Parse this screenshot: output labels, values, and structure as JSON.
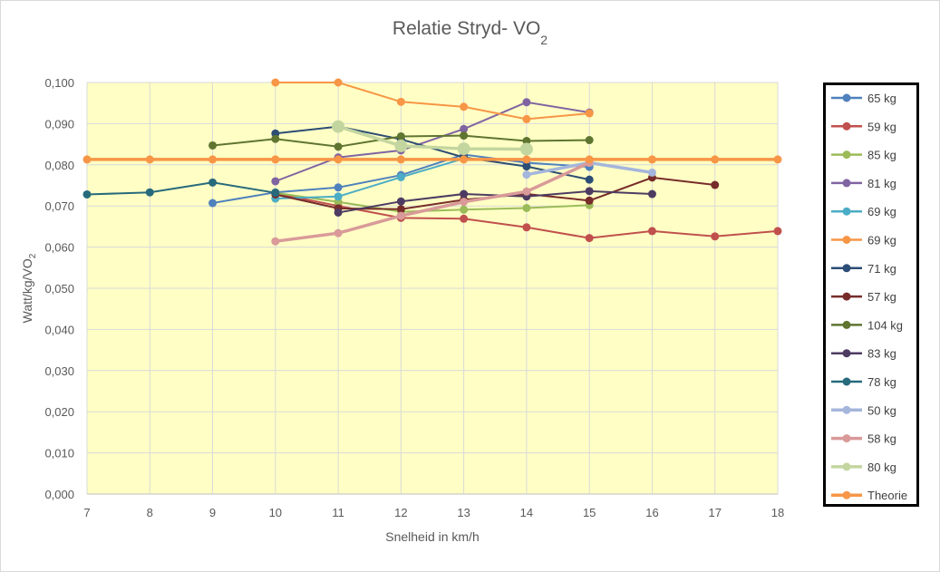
{
  "chart_data": {
    "type": "line",
    "title_main": "Relatie Stryd- VO",
    "title_sub": "2",
    "xlabel": "Snelheid in km/h",
    "ylabel_main": "Watt/kg/VO",
    "ylabel_sub": "2",
    "x_ticks": [
      "7",
      "8",
      "9",
      "10",
      "11",
      "12",
      "13",
      "14",
      "15",
      "16",
      "17",
      "18"
    ],
    "y_ticks": [
      "0,000",
      "0,010",
      "0,020",
      "0,030",
      "0,040",
      "0,050",
      "0,060",
      "0,070",
      "0,080",
      "0,090",
      "0,100"
    ],
    "xlim": [
      7,
      18
    ],
    "ylim": [
      0,
      0.1
    ],
    "grid": true,
    "plot_background": "#ffffc5",
    "legend_position": "right",
    "series": [
      {
        "name": "65 kg",
        "color": "#4f81bd",
        "x": [
          9,
          10,
          11,
          12,
          13,
          14,
          15
        ],
        "y": [
          0.0707,
          0.0733,
          0.0745,
          0.0775,
          0.0825,
          0.0805,
          0.0795
        ]
      },
      {
        "name": "59 kg",
        "color": "#c0504d",
        "x": [
          10,
          11,
          12,
          13,
          14,
          15,
          16,
          17,
          18
        ],
        "y": [
          0.0731,
          0.07,
          0.0671,
          0.0669,
          0.0648,
          0.0622,
          0.0639,
          0.0626,
          0.0639
        ]
      },
      {
        "name": "85 kg",
        "color": "#9bbb59",
        "x": [
          10,
          11,
          12,
          13,
          14,
          15
        ],
        "y": [
          0.0732,
          0.071,
          0.0686,
          0.0691,
          0.0695,
          0.0702
        ]
      },
      {
        "name": "81 kg",
        "color": "#8064a2",
        "x": [
          10,
          11,
          12,
          13,
          14,
          15
        ],
        "y": [
          0.076,
          0.0818,
          0.0835,
          0.0887,
          0.0952,
          0.0927
        ]
      },
      {
        "name": "69 kg",
        "color": "#4bacc6",
        "x": [
          10,
          11,
          12,
          13
        ],
        "y": [
          0.0718,
          0.0723,
          0.077,
          0.0815
        ]
      },
      {
        "name": "69 kg",
        "color": "#f79646",
        "x": [
          10,
          11,
          12,
          13,
          14,
          15
        ],
        "y": [
          0.1,
          0.1,
          0.0953,
          0.0941,
          0.0911,
          0.0925
        ]
      },
      {
        "name": "71 kg",
        "color": "#2c4d75",
        "x": [
          10,
          11,
          12,
          13,
          14,
          15
        ],
        "y": [
          0.0876,
          0.0893,
          0.0862,
          0.0818,
          0.0796,
          0.0764
        ]
      },
      {
        "name": "57 kg",
        "color": "#772c2a",
        "x": [
          10,
          11,
          12,
          13,
          14,
          15,
          16,
          17
        ],
        "y": [
          0.0728,
          0.0694,
          0.0692,
          0.0715,
          0.0729,
          0.0713,
          0.0769,
          0.0751
        ]
      },
      {
        "name": "104 kg",
        "color": "#5f7530",
        "x": [
          9,
          10,
          11,
          12,
          13,
          14,
          15
        ],
        "y": [
          0.0847,
          0.0863,
          0.0844,
          0.0869,
          0.0871,
          0.0858,
          0.086
        ]
      },
      {
        "name": "83 kg",
        "color": "#4d3b62",
        "x": [
          11,
          12,
          13,
          14,
          15,
          16
        ],
        "y": [
          0.0684,
          0.0711,
          0.0729,
          0.0723,
          0.0736,
          0.0729
        ]
      },
      {
        "name": "78 kg",
        "color": "#276a7c",
        "x": [
          7,
          8,
          9,
          10
        ],
        "y": [
          0.0728,
          0.0733,
          0.0757,
          0.0732
        ]
      },
      {
        "name": "50 kg",
        "color": "#a5b6dc",
        "x": [
          14,
          15,
          16
        ],
        "y": [
          0.0776,
          0.0805,
          0.0781
        ]
      },
      {
        "name": "58 kg",
        "color": "#d99a99",
        "x": [
          10,
          11,
          12,
          13,
          14,
          15
        ],
        "y": [
          0.0614,
          0.0634,
          0.0676,
          0.071,
          0.0735,
          0.0805
        ]
      },
      {
        "name": "80 kg",
        "color": "#c4d6a0",
        "x": [
          11,
          12,
          13,
          14
        ],
        "y": [
          0.0893,
          0.0846,
          0.0839,
          0.0838
        ]
      },
      {
        "name": "Theorie",
        "color": "#f79646",
        "x": [
          7,
          8,
          9,
          10,
          11,
          12,
          13,
          14,
          15,
          16,
          17,
          18
        ],
        "y": [
          0.0813,
          0.0813,
          0.0813,
          0.0813,
          0.0813,
          0.0813,
          0.0813,
          0.0813,
          0.0813,
          0.0813,
          0.0813,
          0.0813
        ]
      }
    ]
  }
}
